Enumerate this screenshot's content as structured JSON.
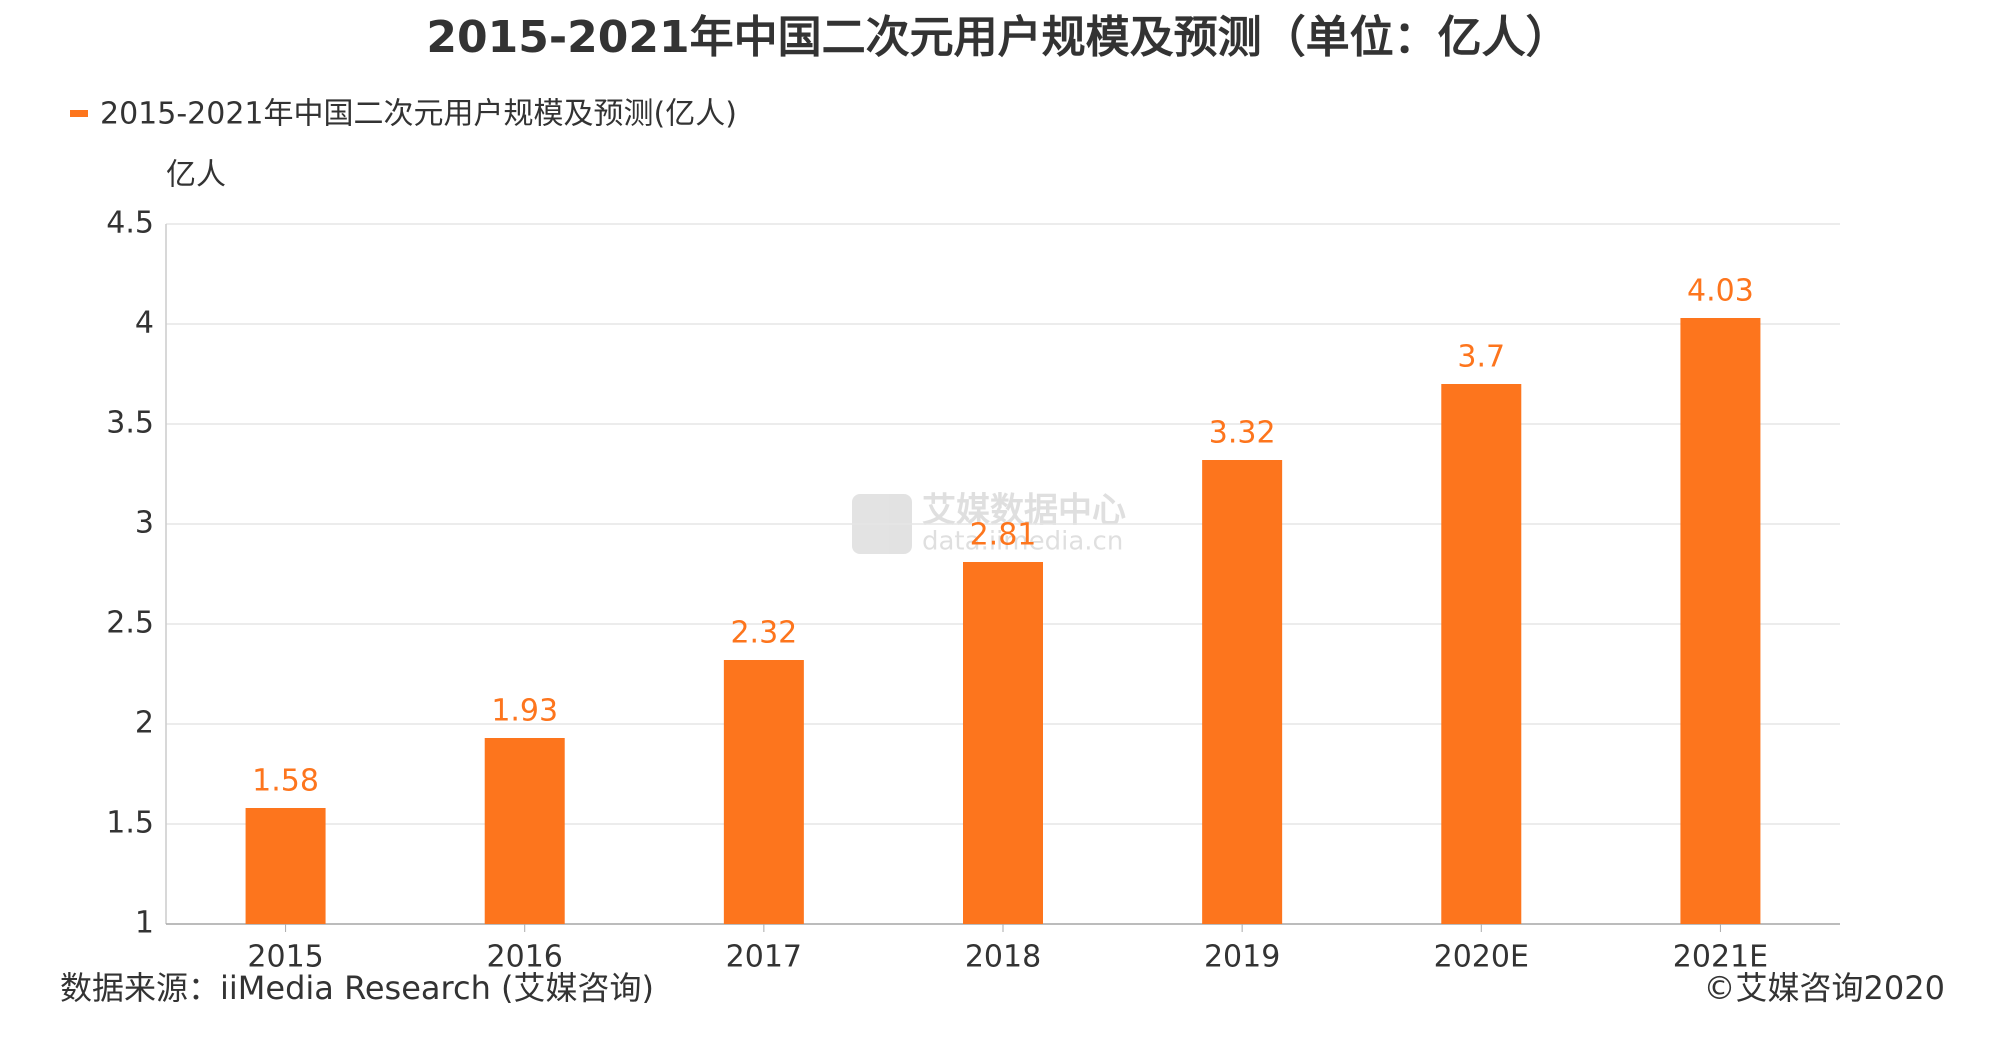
{
  "chart_data": {
    "type": "bar",
    "title": "2015-2021年中国二次元用户规模及预测（单位：亿人）",
    "y_axis_label": "亿人",
    "categories": [
      "2015",
      "2016",
      "2017",
      "2018",
      "2019",
      "2020E",
      "2021E"
    ],
    "series": [
      {
        "name": "2015-2021年中国二次元用户规模及预测(亿人)",
        "color": "#fd751d",
        "values": [
          1.58,
          1.93,
          2.32,
          2.81,
          3.32,
          3.7,
          4.03
        ]
      }
    ],
    "ylim": [
      1,
      4.5
    ],
    "yticks": [
      1,
      1.5,
      2,
      2.5,
      3,
      3.5,
      4,
      4.5
    ],
    "grid": true,
    "watermark": {
      "brand": "艾媒数据中心",
      "url": "data.iimedia.cn"
    },
    "source": "数据来源：iiMedia Research (艾媒咨询)",
    "copyright": "©艾媒咨询2020"
  }
}
